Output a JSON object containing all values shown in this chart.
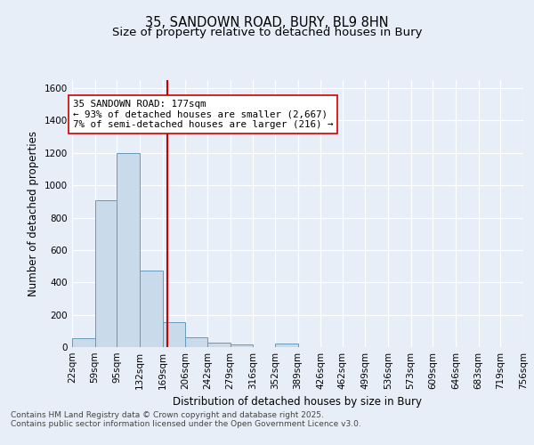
{
  "title1": "35, SANDOWN ROAD, BURY, BL9 8HN",
  "title2": "Size of property relative to detached houses in Bury",
  "xlabel": "Distribution of detached houses by size in Bury",
  "ylabel": "Number of detached properties",
  "bar_edges": [
    22,
    59,
    95,
    132,
    169,
    206,
    242,
    279,
    316,
    352,
    389,
    426,
    462,
    499,
    536,
    573,
    609,
    646,
    683,
    719,
    756
  ],
  "bar_heights": [
    55,
    910,
    1200,
    475,
    155,
    60,
    28,
    15,
    0,
    20,
    0,
    0,
    0,
    0,
    0,
    0,
    0,
    0,
    0,
    0
  ],
  "bar_color": "#c9daea",
  "bar_edgecolor": "#6699bb",
  "property_line_x": 177,
  "property_line_color": "#cc0000",
  "annotation_text": "35 SANDOWN ROAD: 177sqm\n← 93% of detached houses are smaller (2,667)\n7% of semi-detached houses are larger (216) →",
  "annotation_box_edgecolor": "#cc0000",
  "annotation_box_facecolor": "#ffffff",
  "ylim": [
    0,
    1650
  ],
  "yticks": [
    0,
    200,
    400,
    600,
    800,
    1000,
    1200,
    1400,
    1600
  ],
  "tick_labels": [
    "22sqm",
    "59sqm",
    "95sqm",
    "132sqm",
    "169sqm",
    "206sqm",
    "242sqm",
    "279sqm",
    "316sqm",
    "352sqm",
    "389sqm",
    "426sqm",
    "462sqm",
    "499sqm",
    "536sqm",
    "573sqm",
    "609sqm",
    "646sqm",
    "683sqm",
    "719sqm",
    "756sqm"
  ],
  "footer_text": "Contains HM Land Registry data © Crown copyright and database right 2025.\nContains public sector information licensed under the Open Government Licence v3.0.",
  "bg_color": "#e8eef8",
  "plot_bg_color": "#e8eef8",
  "grid_color": "#ffffff",
  "title_fontsize": 10.5,
  "subtitle_fontsize": 9.5,
  "axis_label_fontsize": 8.5,
  "tick_fontsize": 7.5,
  "annotation_fontsize": 7.8,
  "footer_fontsize": 6.5
}
